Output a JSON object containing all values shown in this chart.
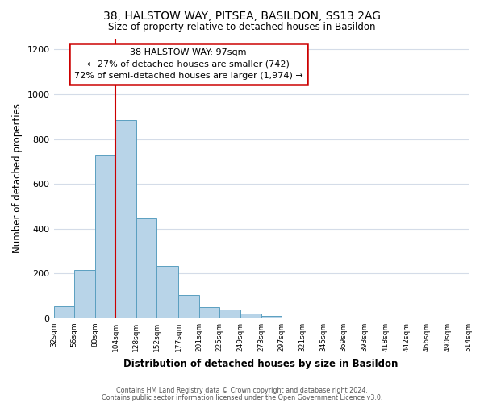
{
  "title": "38, HALSTOW WAY, PITSEA, BASILDON, SS13 2AG",
  "subtitle": "Size of property relative to detached houses in Basildon",
  "xlabel": "Distribution of detached houses by size in Basildon",
  "ylabel": "Number of detached properties",
  "bar_color": "#b8d4e8",
  "bar_edge_color": "#5a9fc0",
  "bins": [
    32,
    56,
    80,
    104,
    128,
    152,
    177,
    201,
    225,
    249,
    273,
    297,
    321,
    345,
    369,
    393,
    418,
    442,
    466,
    490,
    514
  ],
  "values": [
    55,
    215,
    730,
    885,
    445,
    235,
    105,
    50,
    38,
    20,
    10,
    5,
    2,
    0,
    0,
    0,
    0,
    0,
    0,
    0
  ],
  "tick_labels": [
    "32sqm",
    "56sqm",
    "80sqm",
    "104sqm",
    "128sqm",
    "152sqm",
    "177sqm",
    "201sqm",
    "225sqm",
    "249sqm",
    "273sqm",
    "297sqm",
    "321sqm",
    "345sqm",
    "369sqm",
    "393sqm",
    "418sqm",
    "442sqm",
    "466sqm",
    "490sqm",
    "514sqm"
  ],
  "ylim": [
    0,
    1250
  ],
  "yticks": [
    0,
    200,
    400,
    600,
    800,
    1000,
    1200
  ],
  "red_line_x": 104,
  "annotation_title": "38 HALSTOW WAY: 97sqm",
  "annotation_line1": "← 27% of detached houses are smaller (742)",
  "annotation_line2": "72% of semi-detached houses are larger (1,974) →",
  "annotation_box_color": "#ffffff",
  "annotation_box_edge_color": "#cc0000",
  "red_line_color": "#cc0000",
  "footer1": "Contains HM Land Registry data © Crown copyright and database right 2024.",
  "footer2": "Contains public sector information licensed under the Open Government Licence v3.0.",
  "background_color": "#ffffff",
  "grid_color": "#d4dce8"
}
